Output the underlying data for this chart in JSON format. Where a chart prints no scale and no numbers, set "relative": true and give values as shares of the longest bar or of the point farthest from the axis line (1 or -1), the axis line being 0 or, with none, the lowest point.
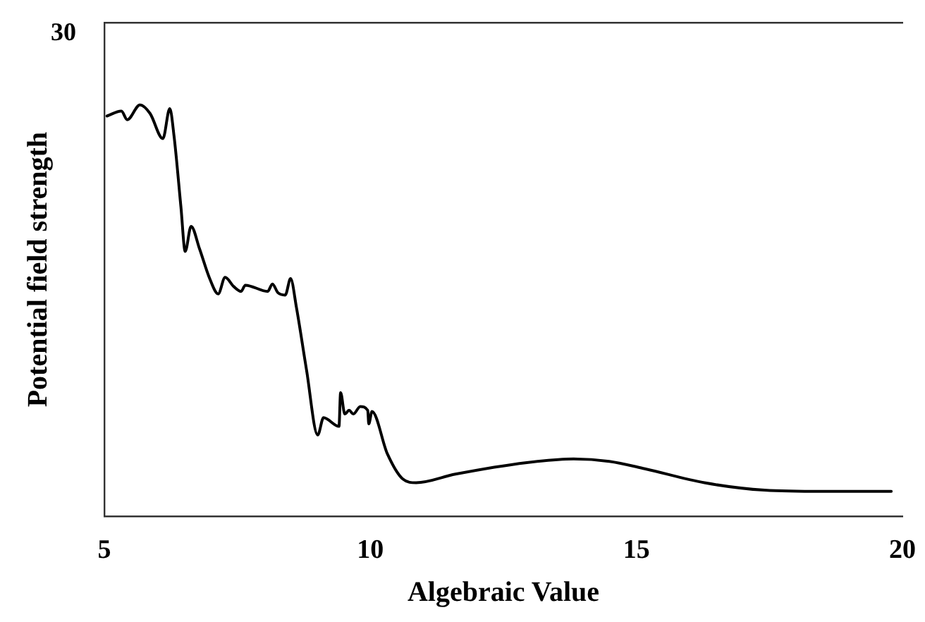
{
  "chart_data": {
    "type": "line",
    "xlabel": "Algebraic Value",
    "ylabel": "Potential field strength",
    "relative": true,
    "annotations": [
      "30"
    ],
    "xlim": [
      5,
      20
    ],
    "xticks": [
      5,
      10,
      15,
      20
    ],
    "grid": false,
    "legend": false,
    "marker": "none",
    "line_style": "solid",
    "x": [
      5.05,
      5.32,
      5.43,
      5.67,
      5.86,
      6.1,
      6.23,
      6.31,
      6.44,
      6.52,
      6.63,
      6.79,
      6.98,
      7.14,
      7.27,
      7.43,
      7.57,
      7.65,
      8.07,
      8.16,
      8.26,
      8.4,
      8.5,
      8.61,
      8.8,
      9.01,
      9.12,
      9.41,
      9.44,
      9.52,
      9.6,
      9.68,
      9.81,
      9.95,
      9.97,
      10.03,
      10.32,
      10.61,
      10.86,
      11.6,
      12.94,
      13.82,
      14.49,
      15.16,
      16.28,
      17.41,
      18.5,
      19.79
    ],
    "series": [
      {
        "color": "#000000",
        "values": [
          0.973,
          0.985,
          0.964,
          1,
          0.979,
          0.918,
          0.991,
          0.924,
          0.751,
          0.644,
          0.705,
          0.65,
          0.578,
          0.541,
          0.581,
          0.559,
          0.547,
          0.562,
          0.547,
          0.565,
          0.544,
          0.538,
          0.578,
          0.508,
          0.356,
          0.198,
          0.24,
          0.219,
          0.301,
          0.249,
          0.258,
          0.249,
          0.267,
          0.258,
          0.225,
          0.255,
          0.152,
          0.091,
          0.082,
          0.103,
          0.131,
          0.14,
          0.134,
          0.116,
          0.082,
          0.064,
          0.061,
          0.061
        ]
      }
    ]
  }
}
